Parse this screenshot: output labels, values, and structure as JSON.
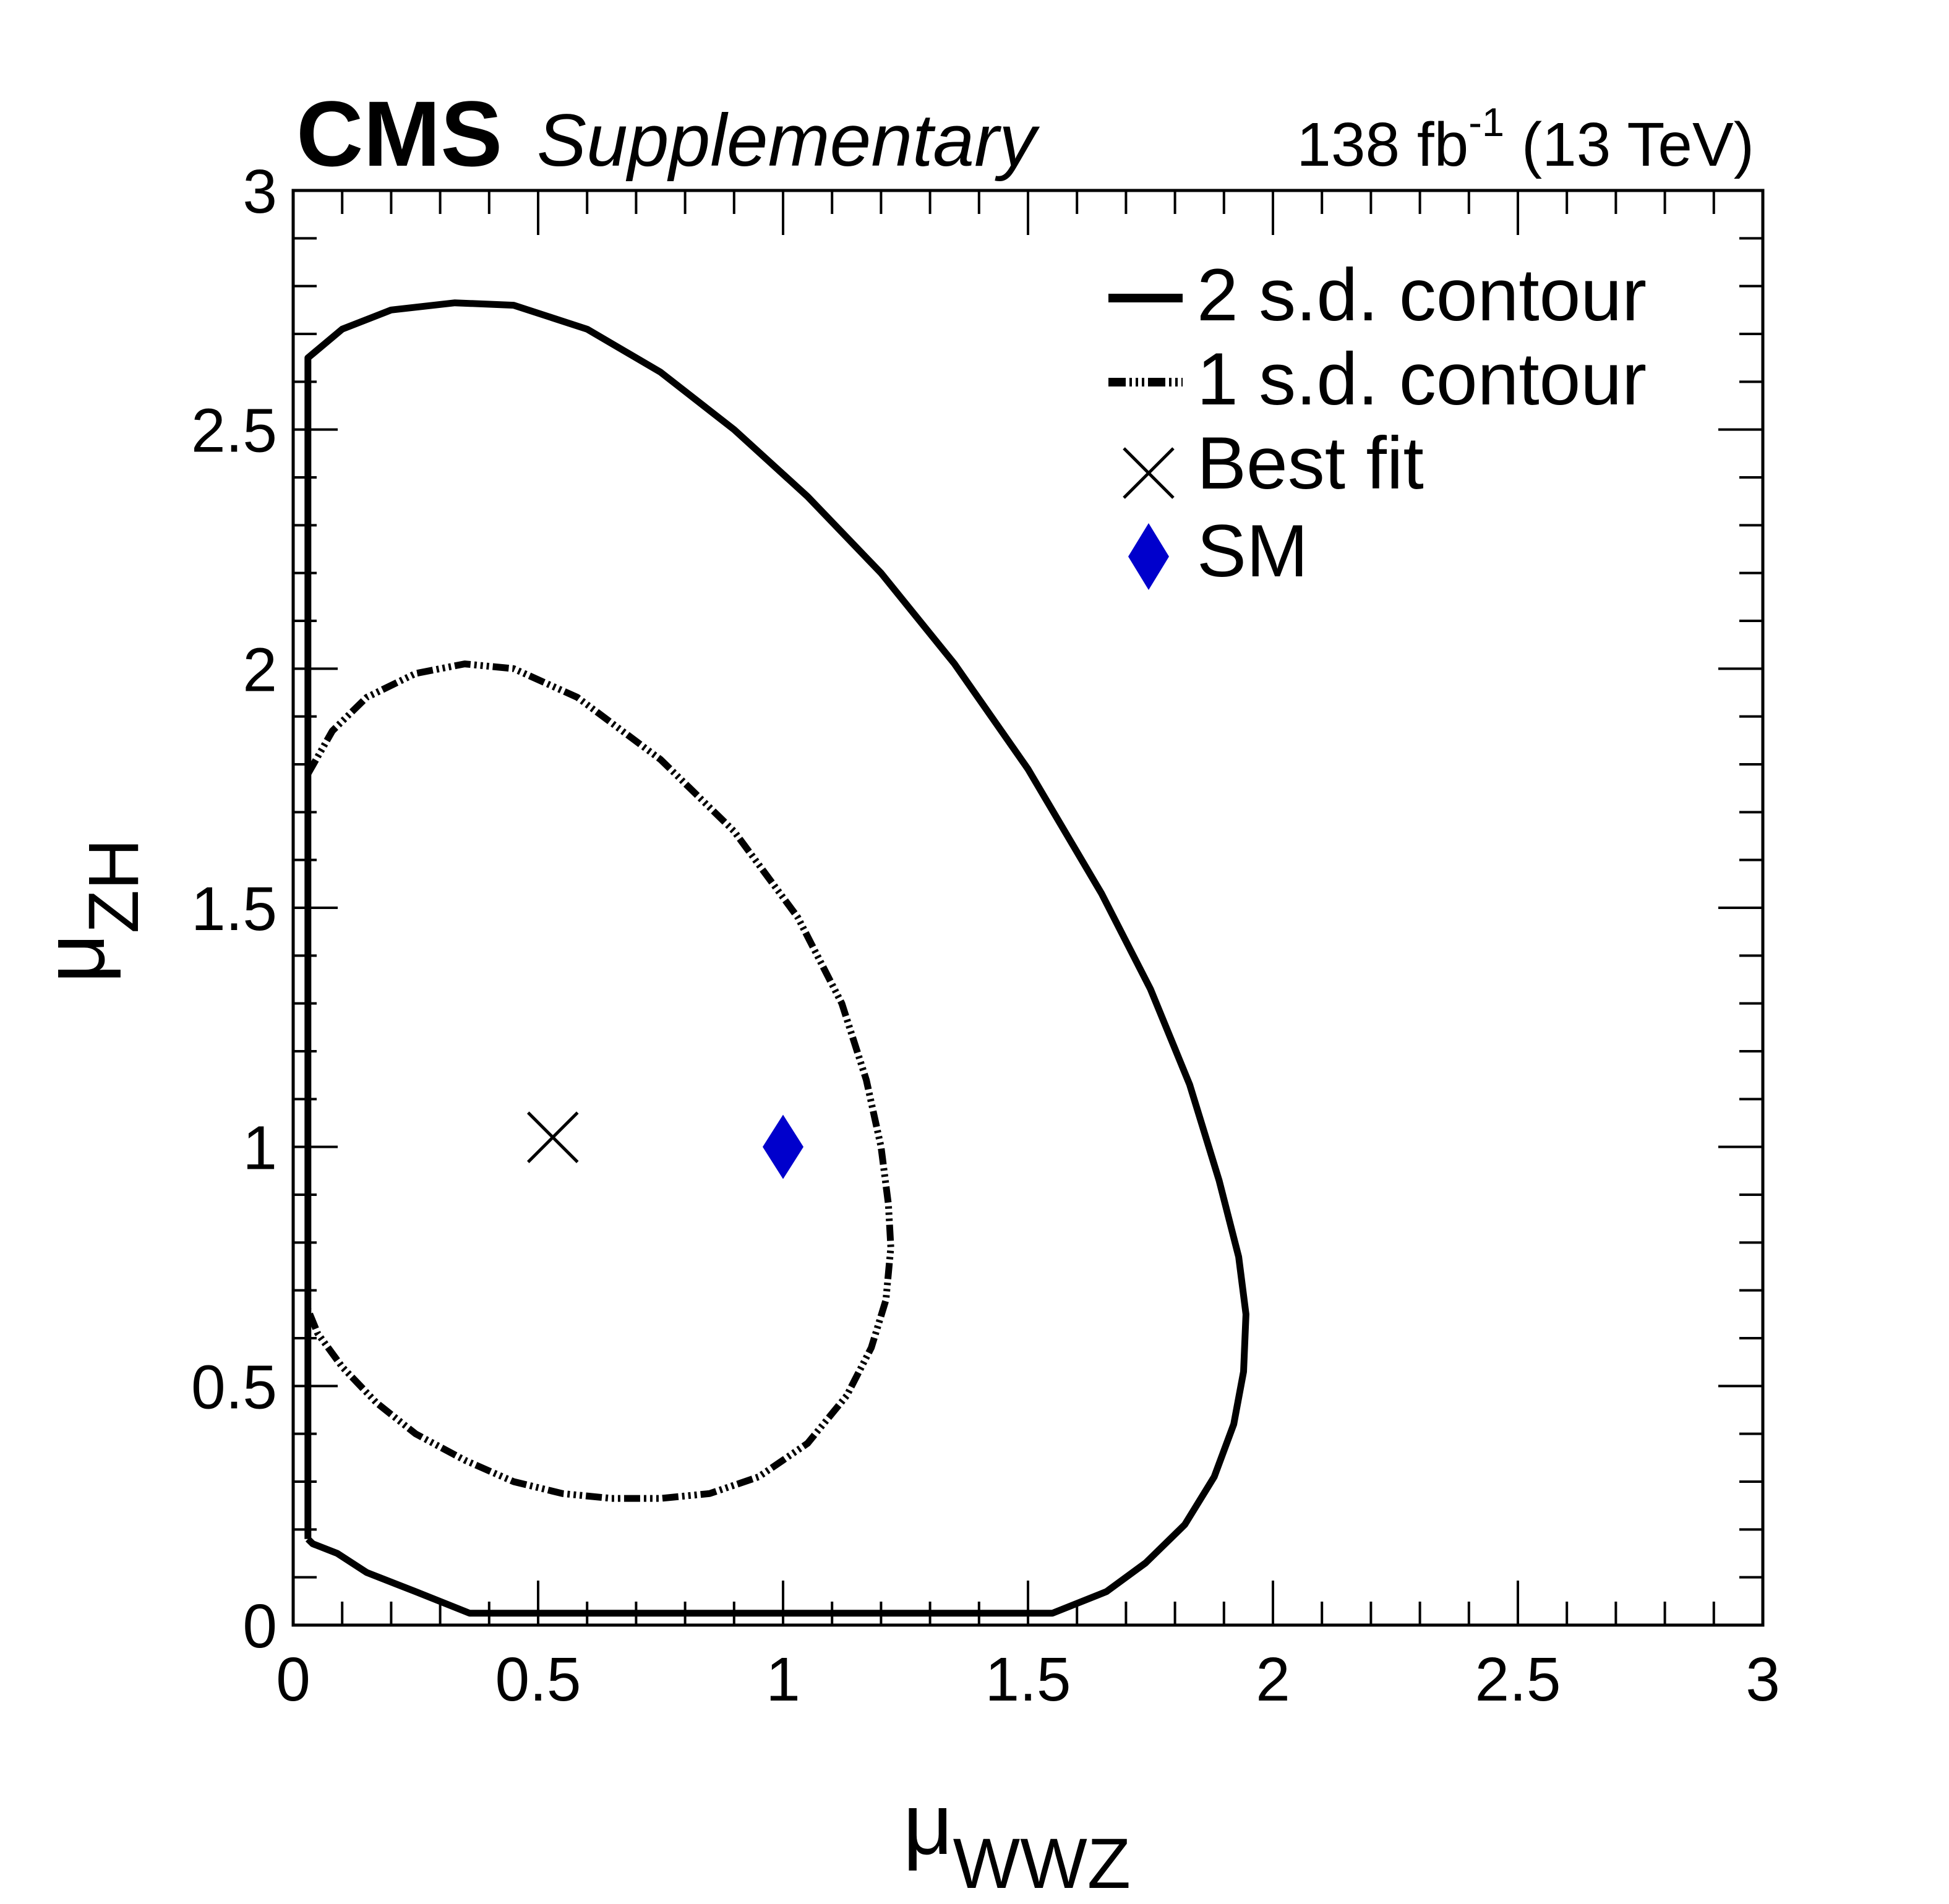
{
  "header": {
    "experiment": "CMS",
    "label": "Supplementary",
    "lumi_value": "138 fb",
    "lumi_exponent": "-1",
    "energy": "(13 TeV)"
  },
  "axes": {
    "x_symbol": "μ",
    "x_subscript": "WWZ",
    "y_symbol": "μ",
    "y_subscript": "ZH"
  },
  "legend": {
    "items": [
      {
        "label": "2 s.d. contour",
        "style": "solid"
      },
      {
        "label": "1 s.d. contour",
        "style": "dashdot"
      },
      {
        "label": "Best fit",
        "style": "cross"
      },
      {
        "label": "SM",
        "style": "diamond"
      }
    ]
  },
  "colors": {
    "sm": "#0000cc",
    "line": "#000000"
  },
  "chart_data": {
    "type": "scatter",
    "title": "",
    "xlabel": "μ_WWZ",
    "ylabel": "μ_ZH",
    "xlim": [
      0,
      3
    ],
    "ylim": [
      0,
      3
    ],
    "xticks": [
      "0",
      "0.5",
      "1",
      "1.5",
      "2",
      "2.5",
      "3"
    ],
    "yticks": [
      "0",
      "0.5",
      "1",
      "1.5",
      "2",
      "2.5",
      "3"
    ],
    "legend_position": "top-right",
    "series": [
      {
        "name": "2 s.d. contour",
        "kind": "contour",
        "points": [
          [
            0.03,
            0.18
          ],
          [
            0.03,
            2.65
          ],
          [
            0.1,
            2.71
          ],
          [
            0.2,
            2.75
          ],
          [
            0.33,
            2.765
          ],
          [
            0.45,
            2.76
          ],
          [
            0.6,
            2.71
          ],
          [
            0.75,
            2.62
          ],
          [
            0.9,
            2.5
          ],
          [
            1.05,
            2.36
          ],
          [
            1.2,
            2.2
          ],
          [
            1.35,
            2.01
          ],
          [
            1.5,
            1.79
          ],
          [
            1.65,
            1.53
          ],
          [
            1.75,
            1.33
          ],
          [
            1.83,
            1.13
          ],
          [
            1.89,
            0.93
          ],
          [
            1.93,
            0.77
          ],
          [
            1.945,
            0.65
          ],
          [
            1.94,
            0.53
          ],
          [
            1.92,
            0.42
          ],
          [
            1.88,
            0.31
          ],
          [
            1.82,
            0.21
          ],
          [
            1.74,
            0.13
          ],
          [
            1.66,
            0.07
          ],
          [
            1.55,
            0.025
          ],
          [
            0.36,
            0.025
          ],
          [
            0.25,
            0.07
          ],
          [
            0.15,
            0.11
          ],
          [
            0.09,
            0.15
          ],
          [
            0.04,
            0.17
          ],
          [
            0.03,
            0.18
          ]
        ]
      },
      {
        "name": "1 s.d. contour",
        "kind": "contour",
        "points": [
          [
            0.03,
            1.78
          ],
          [
            0.08,
            1.87
          ],
          [
            0.15,
            1.94
          ],
          [
            0.25,
            1.99
          ],
          [
            0.35,
            2.01
          ],
          [
            0.45,
            2.0
          ],
          [
            0.58,
            1.94
          ],
          [
            0.75,
            1.81
          ],
          [
            0.9,
            1.66
          ],
          [
            1.03,
            1.48
          ],
          [
            1.12,
            1.3
          ],
          [
            1.17,
            1.14
          ],
          [
            1.2,
            1.0
          ],
          [
            1.215,
            0.88
          ],
          [
            1.22,
            0.79
          ],
          [
            1.21,
            0.68
          ],
          [
            1.18,
            0.58
          ],
          [
            1.13,
            0.48
          ],
          [
            1.05,
            0.38
          ],
          [
            0.95,
            0.31
          ],
          [
            0.85,
            0.275
          ],
          [
            0.75,
            0.265
          ],
          [
            0.65,
            0.265
          ],
          [
            0.55,
            0.275
          ],
          [
            0.45,
            0.3
          ],
          [
            0.35,
            0.345
          ],
          [
            0.25,
            0.4
          ],
          [
            0.17,
            0.465
          ],
          [
            0.1,
            0.54
          ],
          [
            0.05,
            0.61
          ],
          [
            0.03,
            0.66
          ]
        ]
      },
      {
        "name": "Best fit",
        "kind": "marker",
        "x": 0.53,
        "y": 1.02
      },
      {
        "name": "SM",
        "kind": "marker",
        "x": 1.0,
        "y": 1.0
      }
    ]
  }
}
